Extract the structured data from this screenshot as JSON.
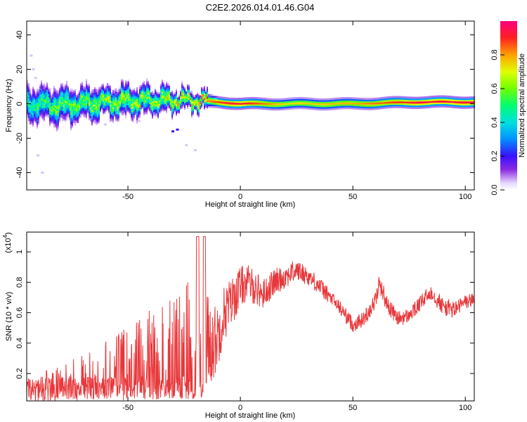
{
  "title": "C2E2.2026.014.01.46.G04",
  "chart_data": [
    {
      "type": "heatmap",
      "xlabel": "Height of straight line (km)",
      "ylabel": "Frequency (Hz)",
      "xlim": [
        -95,
        104
      ],
      "ylim": [
        -50,
        48
      ],
      "xticks": [
        -50,
        0,
        50,
        100
      ],
      "yticks": [
        40,
        20,
        0,
        -20,
        -40
      ],
      "ridge_description": "High-amplitude ridge centered near 0 Hz; broad noisy spread (±8 Hz) below -15 km, narrow band above",
      "ridge": [
        {
          "x": -95,
          "f": 0,
          "amp": 0.45,
          "spread": 7
        },
        {
          "x": -80,
          "f": -1,
          "amp": 0.55,
          "spread": 7
        },
        {
          "x": -60,
          "f": 1,
          "amp": 0.6,
          "spread": 6
        },
        {
          "x": -40,
          "f": 2,
          "amp": 0.6,
          "spread": 5
        },
        {
          "x": -20,
          "f": 2,
          "amp": 0.7,
          "spread": 3
        },
        {
          "x": -10,
          "f": 1,
          "amp": 0.85,
          "spread": 2
        },
        {
          "x": 0,
          "f": 0,
          "amp": 0.9,
          "spread": 2
        },
        {
          "x": 20,
          "f": 0,
          "amp": 0.7,
          "spread": 2
        },
        {
          "x": 50,
          "f": 0,
          "amp": 0.75,
          "spread": 2
        },
        {
          "x": 80,
          "f": 1,
          "amp": 0.9,
          "spread": 2
        },
        {
          "x": 104,
          "f": 1,
          "amp": 0.9,
          "spread": 2
        }
      ],
      "colorbar": {
        "label": "Normalized spectral amplitude",
        "ticks": [
          "0.0",
          "0.2",
          "0.4",
          "0.6",
          "0.8"
        ],
        "tick_values": [
          0.0,
          0.2,
          0.4,
          0.6,
          0.8
        ],
        "range": [
          0,
          1
        ]
      }
    },
    {
      "type": "line",
      "xlabel": "Height of straight line (km)",
      "ylabel": "SNR (10 * v/v)",
      "yscale_note": "(x10",
      "yscale_exp": "4",
      "line_color": "#e8373a",
      "xlim": [
        -95,
        104
      ],
      "ylim": [
        0.02,
        1.13
      ],
      "xticks": [
        -50,
        0,
        50,
        100
      ],
      "yticks": [
        0.2,
        0.4,
        0.6,
        0.8,
        1.0
      ],
      "ytick_labels": [
        "0.2",
        "0.4",
        "0.6",
        "0.8",
        "1"
      ],
      "series": [
        {
          "name": "SNR",
          "x": [
            -95,
            -90,
            -85,
            -80,
            -75,
            -70,
            -65,
            -60,
            -55,
            -50,
            -45,
            -40,
            -35,
            -30,
            -25,
            -20,
            -17,
            -15,
            -12,
            -10,
            -8,
            -5,
            -2,
            0,
            3,
            5,
            8,
            10,
            15,
            20,
            25,
            30,
            35,
            40,
            45,
            50,
            55,
            60,
            62,
            65,
            70,
            75,
            80,
            85,
            90,
            95,
            100,
            104
          ],
          "y": [
            0.12,
            0.1,
            0.11,
            0.12,
            0.14,
            0.17,
            0.2,
            0.22,
            0.24,
            0.27,
            0.3,
            0.33,
            0.36,
            0.38,
            0.4,
            0.45,
            0.55,
            0.42,
            0.4,
            0.45,
            0.58,
            0.65,
            0.72,
            0.77,
            0.8,
            0.78,
            0.75,
            0.72,
            0.8,
            0.84,
            0.88,
            0.84,
            0.78,
            0.7,
            0.62,
            0.52,
            0.56,
            0.68,
            0.8,
            0.66,
            0.56,
            0.58,
            0.66,
            0.74,
            0.64,
            0.62,
            0.67,
            0.69
          ],
          "noise": [
            0.1,
            0.1,
            0.12,
            0.13,
            0.15,
            0.16,
            0.18,
            0.2,
            0.22,
            0.25,
            0.28,
            0.3,
            0.32,
            0.35,
            0.38,
            0.42,
            0.45,
            0.35,
            0.25,
            0.22,
            0.2,
            0.17,
            0.15,
            0.14,
            0.12,
            0.12,
            0.11,
            0.1,
            0.09,
            0.08,
            0.07,
            0.06,
            0.06,
            0.05,
            0.05,
            0.05,
            0.05,
            0.06,
            0.07,
            0.06,
            0.05,
            0.05,
            0.05,
            0.06,
            0.06,
            0.06,
            0.05,
            0.05
          ]
        }
      ]
    }
  ]
}
